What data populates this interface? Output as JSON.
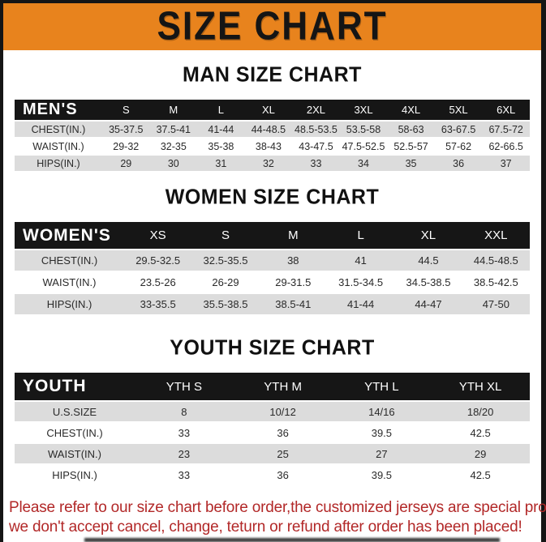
{
  "colors": {
    "banner_bg": "#E8831D",
    "header_bg": "#161616",
    "stripe": "#DCDCDC",
    "footer_red": "#B22828"
  },
  "banner": {
    "title": "SIZE CHART"
  },
  "sections": [
    {
      "heading": "MAN SIZE CHART",
      "header_label": "MEN'S",
      "columns": [
        "S",
        "M",
        "L",
        "XL",
        "2XL",
        "3XL",
        "4XL",
        "5XL",
        "6XL"
      ],
      "rows": [
        {
          "label": "CHEST(IN.)",
          "values": [
            "35-37.5",
            "37.5-41",
            "41-44",
            "44-48.5",
            "48.5-53.5",
            "53.5-58",
            "58-63",
            "63-67.5",
            "67.5-72"
          ]
        },
        {
          "label": "WAIST(IN.)",
          "values": [
            "29-32",
            "32-35",
            "35-38",
            "38-43",
            "43-47.5",
            "47.5-52.5",
            "52.5-57",
            "57-62",
            "62-66.5"
          ]
        },
        {
          "label": "HIPS(IN.)",
          "values": [
            "29",
            "30",
            "31",
            "32",
            "33",
            "34",
            "35",
            "36",
            "37"
          ]
        }
      ]
    },
    {
      "heading": "WOMEN SIZE CHART",
      "header_label": "WOMEN'S",
      "columns": [
        "XS",
        "S",
        "M",
        "L",
        "XL",
        "XXL"
      ],
      "rows": [
        {
          "label": "CHEST(IN.)",
          "values": [
            "29.5-32.5",
            "32.5-35.5",
            "38",
            "41",
            "44.5",
            "44.5-48.5"
          ]
        },
        {
          "label": "WAIST(IN.)",
          "values": [
            "23.5-26",
            "26-29",
            "29-31.5",
            "31.5-34.5",
            "34.5-38.5",
            "38.5-42.5"
          ]
        },
        {
          "label": "HIPS(IN.)",
          "values": [
            "33-35.5",
            "35.5-38.5",
            "38.5-41",
            "41-44",
            "44-47",
            "47-50"
          ]
        }
      ]
    },
    {
      "heading": "YOUTH SIZE CHART",
      "header_label": "YOUTH",
      "columns": [
        "YTH S",
        "YTH M",
        "YTH L",
        "YTH XL"
      ],
      "rows": [
        {
          "label": "U.S.SIZE",
          "values": [
            "8",
            "10/12",
            "14/16",
            "18/20"
          ]
        },
        {
          "label": "CHEST(IN.)",
          "values": [
            "33",
            "36",
            "39.5",
            "42.5"
          ]
        },
        {
          "label": "WAIST(IN.)",
          "values": [
            "23",
            "25",
            "27",
            "29"
          ]
        },
        {
          "label": "HIPS(IN.)",
          "values": [
            "33",
            "36",
            "39.5",
            "42.5"
          ]
        }
      ]
    }
  ],
  "footer": {
    "line1": "Please refer to our size chart before order,the customized jerseys are special products,",
    "line2": "we don't accept cancel, change, teturn or refund after order has been placed!"
  }
}
